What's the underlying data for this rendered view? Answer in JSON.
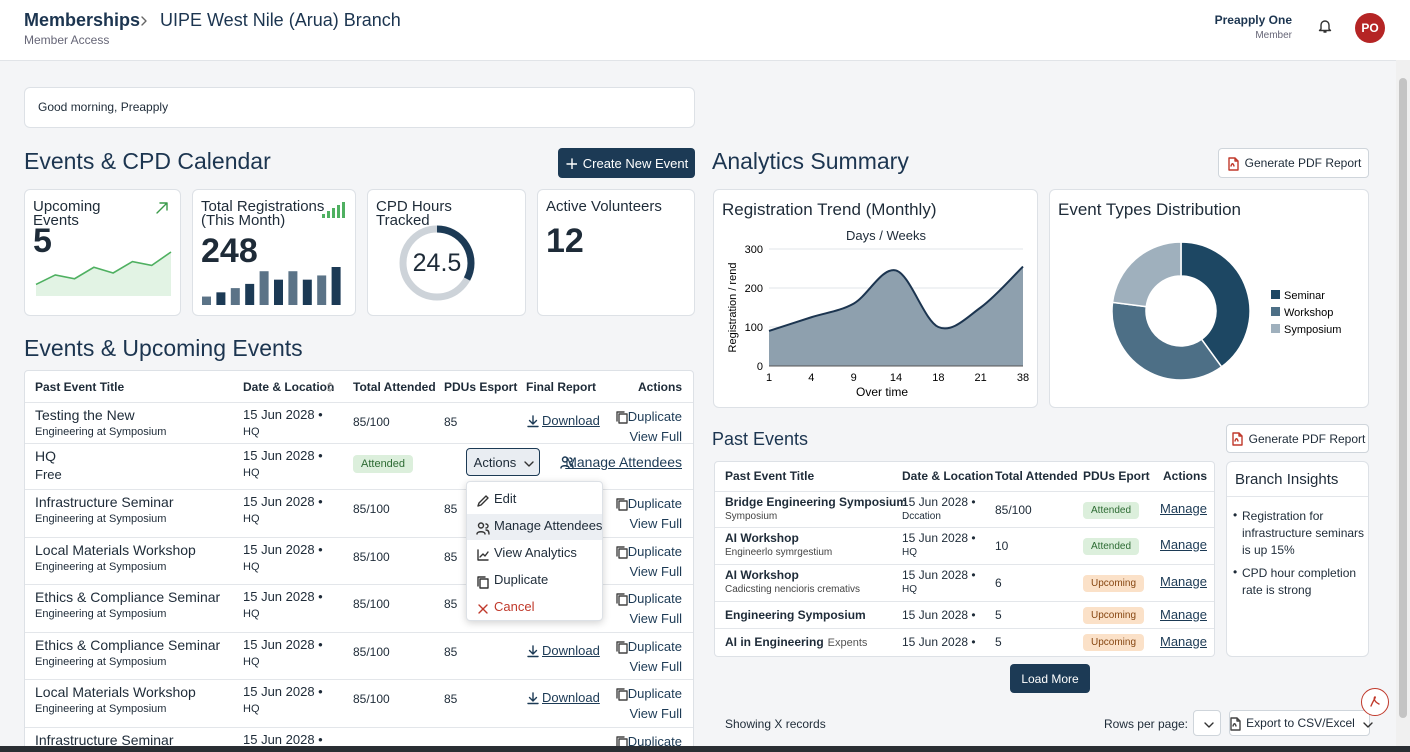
{
  "header": {
    "section": "Memberships",
    "branch": "UIPE West Nile (Arua) Branch",
    "subtitle": "Member Access",
    "user_name": "Preapply One",
    "user_role": "Member",
    "avatar": "PO"
  },
  "greeting": "Good morning, Preapply",
  "calendar": {
    "title": "Events & CPD Calendar",
    "create_button": "Create New Event",
    "stats": [
      {
        "label": "Upcoming Events",
        "value": 5,
        "trend": [
          1,
          2,
          1.6,
          2.8,
          2.2,
          3.4,
          3,
          4.4
        ]
      },
      {
        "label": "Total Registrations (This Month)",
        "value": 248,
        "bars": [
          2,
          3,
          4,
          5,
          8,
          6,
          8,
          6,
          7,
          9
        ]
      },
      {
        "label": "CPD Hours Tracked",
        "value": 24.5
      },
      {
        "label": "Active Volunteers",
        "value": 12
      }
    ]
  },
  "upcoming": {
    "title": "Events & Upcoming Events",
    "columns": [
      "Past Event Title",
      "Date & Location",
      "Total Attended",
      "PDUs Esport",
      "Final Report",
      "Actions"
    ],
    "rows": [
      {
        "title": "Testing the New",
        "subtitle": "Engineering at Symposium",
        "date": "15 Jun 2028 •",
        "location": "HQ",
        "attended": "85/100",
        "pdus": 85,
        "report": "Download",
        "actions": [
          "Duplicate",
          "View Full"
        ]
      },
      {
        "title": "HQ",
        "subtitle": "Free",
        "date": "15 Jun 2028 •",
        "location": "HQ",
        "status": "Attended",
        "actions_button": "Actions",
        "actions_link": "Manage Attendees"
      },
      {
        "title": "Infrastructure Seminar",
        "subtitle": "Engineering at Symposium",
        "date": "15 Jun 2028 •",
        "location": "HQ",
        "attended": "85/100",
        "pdus": 85,
        "actions": [
          "Duplicate",
          "View Full"
        ]
      },
      {
        "title": "Local Materials Workshop",
        "subtitle": "Engineering at Symposium",
        "date": "15 Jun 2028 •",
        "location": "HQ",
        "attended": "85/100",
        "pdus": 85,
        "actions": [
          "Duplicate",
          "View Full"
        ]
      },
      {
        "title": "Ethics & Compliance Seminar",
        "subtitle": "Engineering at Symposium",
        "date": "15 Jun 2028 •",
        "location": "HQ",
        "attended": "85/100",
        "pdus": 85,
        "actions": [
          "Duplicate",
          "View Full"
        ]
      },
      {
        "title": "Ethics & Compliance Seminar",
        "subtitle": "Engineering at Symposium",
        "date": "15 Jun 2028 •",
        "location": "HQ",
        "attended": "85/100",
        "pdus": 85,
        "report": "Download",
        "actions": [
          "Duplicate",
          "View Full"
        ]
      },
      {
        "title": "Local Materials Workshop",
        "subtitle": "Engineering at Symposium",
        "date": "15 Jun 2028 •",
        "location": "HQ",
        "attended": "85/100",
        "pdus": 85,
        "report": "Download",
        "actions": [
          "Duplicate",
          "View Full"
        ]
      },
      {
        "title": "Infrastructure Seminar",
        "date": "15 Jun 2028 •",
        "actions": [
          "Duplicate"
        ]
      }
    ],
    "menu": [
      "Edit",
      "Manage Attendees",
      "View Analytics",
      "Duplicate",
      "Cancel"
    ]
  },
  "analytics": {
    "title": "Analytics Summary",
    "pdf_button": "Generate PDF Report",
    "trend": {
      "type": "area",
      "title": "Registration Trend (Monthly)",
      "subtitle": "Days / Weeks",
      "y_label": "Registration / rend",
      "x_label": "Over time",
      "categories": [
        "1",
        "4",
        "9",
        "14",
        "18",
        "21",
        "38"
      ],
      "values": [
        90,
        125,
        160,
        245,
        100,
        150,
        255
      ],
      "color": "#8ea0ae",
      "ylim": [
        0,
        300
      ],
      "yticks": [
        0,
        100,
        200,
        300
      ],
      "grid": true
    },
    "distribution": {
      "type": "donut",
      "title": "Event Types Distribution",
      "series": [
        {
          "name": "Seminar",
          "color": "#1d4763",
          "value": 40
        },
        {
          "name": "Workshop",
          "color": "#4d6f86",
          "value": 37
        },
        {
          "name": "Symposium",
          "color": "#9fb0bd",
          "value": 23
        }
      ]
    }
  },
  "past_events": {
    "title": "Past Events",
    "pdf_button": "Generate PDF Report",
    "columns": [
      "Past Event Title",
      "Date & Location",
      "Total Attended",
      "PDUs Eport",
      "Actions"
    ],
    "rows": [
      {
        "title": "Bridge Engineering Symposium",
        "subtitle": "Symposium",
        "date": "15 Jun 2028 •",
        "location": "Dccation",
        "attended": "85/100",
        "status": "Attended",
        "action": "Manage"
      },
      {
        "title": "AI Workshop",
        "subtitle": "Engineerlo symrgestium",
        "date": "15 Jun 2028 •",
        "location": "HQ",
        "attended": 10,
        "status": "Attended",
        "action": "Manage"
      },
      {
        "title": "AI Workshop",
        "subtitle": "Cadicsting nencioris cremativs",
        "date": "15 Jun 2028 •",
        "location": "HQ",
        "attended": 6,
        "status": "Upcoming",
        "action": "Manage"
      },
      {
        "title": "Engineering Symposium",
        "date": "15 Jun 2028 •",
        "attended": 5,
        "status": "Upcoming",
        "action": "Manage"
      },
      {
        "title": "AI in Engineering",
        "note": "Expents",
        "date": "15 Jun 2028 •",
        "attended": 5,
        "status": "Upcoming",
        "action": "Manage"
      }
    ],
    "load_more": "Load More",
    "showing": "Showing X records",
    "rows_per_page": "Rows per page:",
    "export": "Export to CSV/Excel"
  },
  "insights": {
    "title": "Branch Insights",
    "items": [
      "Registration for infrastructure seminars is up 15%",
      "CPD hour completion rate is strong"
    ]
  }
}
